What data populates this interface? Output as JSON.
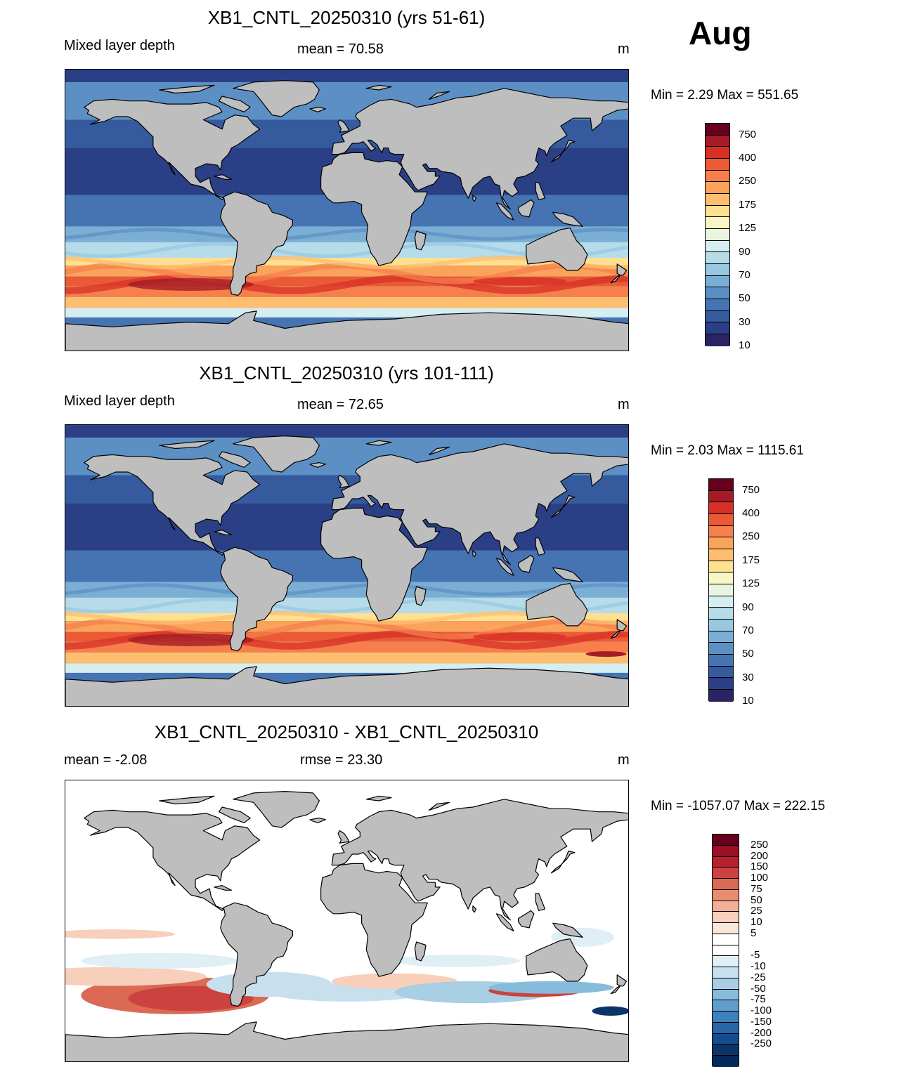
{
  "month": "Aug",
  "panels": [
    {
      "id": "panel1",
      "title": "XB1_CNTL_20250310 (yrs 51-61)",
      "left_text": "Mixed layer depth",
      "center_text": "mean =  70.58",
      "units": "m",
      "minmax": "Min =   2.29 Max = 551.65",
      "kind": "field",
      "variant": 1
    },
    {
      "id": "panel2",
      "title": "XB1_CNTL_20250310 (yrs 101-111)",
      "left_text": "Mixed layer depth",
      "center_text": "mean =  72.65",
      "units": "m",
      "minmax": "Min =   2.03 Max = 1115.61",
      "kind": "field",
      "variant": 2
    },
    {
      "id": "panel3",
      "title": "XB1_CNTL_20250310 - XB1_CNTL_20250310",
      "left_text": "mean =  -2.08",
      "center_text": "rmse =  23.30",
      "units": "m",
      "minmax": "Min = -1057.07 Max = 222.15",
      "kind": "diff",
      "variant": 3
    }
  ],
  "field_colorbar": {
    "labels": [
      "750",
      "400",
      "250",
      "175",
      "125",
      "90",
      "70",
      "50",
      "30",
      "10"
    ],
    "colors": [
      "#67001f",
      "#a51c26",
      "#d73027",
      "#ea5a35",
      "#f67f4b",
      "#fba25b",
      "#fdbf6f",
      "#fee090",
      "#f8f6c4",
      "#e9f5e0",
      "#d4eef2",
      "#b6dbe9",
      "#98c8e0",
      "#7aaed4",
      "#5c90c4",
      "#4674b2",
      "#355a9e",
      "#2b3f86",
      "#2a2463"
    ]
  },
  "diff_colorbar": {
    "labels": [
      "250",
      "200",
      "150",
      "100",
      "75",
      "50",
      "25",
      "10",
      "5",
      "-5",
      "-10",
      "-25",
      "-50",
      "-75",
      "-100",
      "-150",
      "-200",
      "-250"
    ],
    "colors": [
      "#67001f",
      "#9b0f27",
      "#b8202e",
      "#cc4240",
      "#db6a54",
      "#e88d72",
      "#f2b097",
      "#f8cfba",
      "#fbe6da",
      "#ffffff",
      "#ffffff",
      "#e0eef6",
      "#c8e0ee",
      "#a9cfe5",
      "#86bbdc",
      "#5f9ecd",
      "#3f81bd",
      "#2866a8",
      "#154c8f",
      "#0b3569",
      "#052a5a"
    ]
  }
}
